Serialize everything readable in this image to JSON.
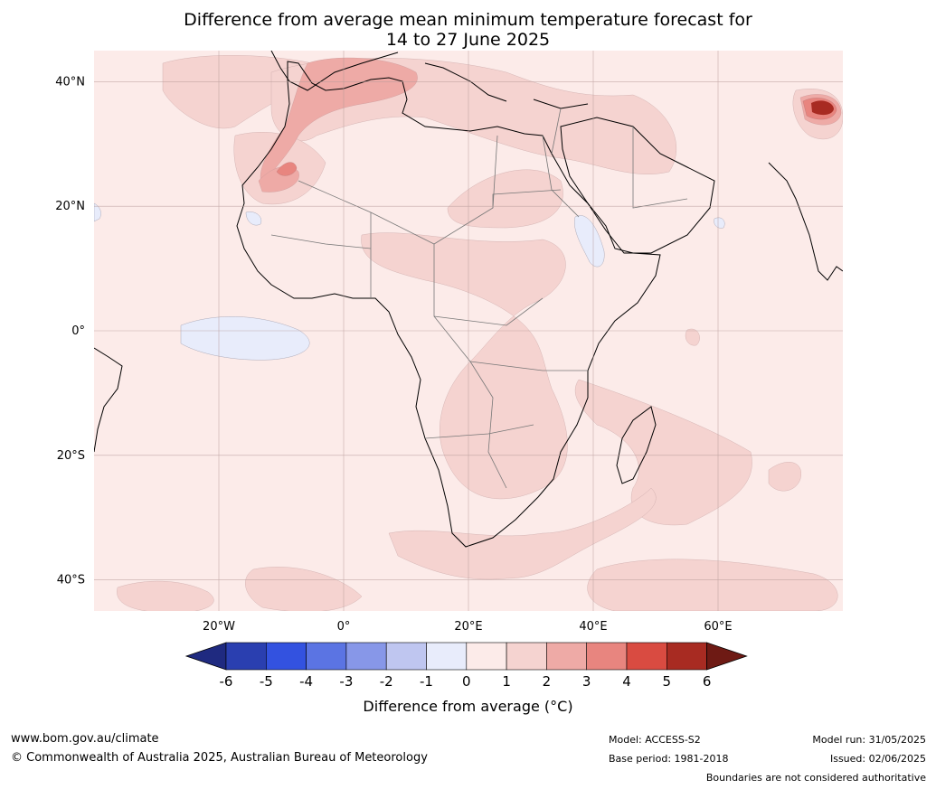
{
  "title": {
    "line1": "Difference from average mean minimum temperature forecast for",
    "line2": "14 to 27 June 2025"
  },
  "map": {
    "lat_labels": [
      "40°N",
      "20°N",
      "0°",
      "20°S",
      "40°S"
    ],
    "lon_labels": [
      "20°W",
      "0°",
      "20°E",
      "40°E",
      "60°E"
    ],
    "lat_values": [
      40,
      20,
      0,
      -20,
      -40
    ],
    "lon_values": [
      -20,
      0,
      20,
      40,
      60
    ],
    "lon_range": [
      -40,
      80
    ],
    "lat_range": [
      -45,
      45
    ]
  },
  "colorbar": {
    "ticks": [
      "-6",
      "-5",
      "-4",
      "-3",
      "-2",
      "-1",
      "0",
      "1",
      "2",
      "3",
      "4",
      "5",
      "6"
    ],
    "label": "Difference from average (°C)",
    "colors": [
      "#1f2a80",
      "#2a3fb0",
      "#3352e0",
      "#5b74e3",
      "#8797e8",
      "#bfc6f0",
      "#e8ecfb",
      "#fcebe9",
      "#f5d3d0",
      "#eeaaa6",
      "#e8857f",
      "#d94b41",
      "#a82b22",
      "#6e1a14"
    ]
  },
  "footer": {
    "website": "www.bom.gov.au/climate",
    "copyright": "© Commonwealth of Australia 2025, Australian Bureau of Meteorology",
    "model": "Model: ACCESS-S2",
    "base_period": "Base period: 1981-2018",
    "model_run": "Model run: 31/05/2025",
    "issued": "Issued: 02/06/2025",
    "disclaimer": "Boundaries are not considered authoritative"
  }
}
